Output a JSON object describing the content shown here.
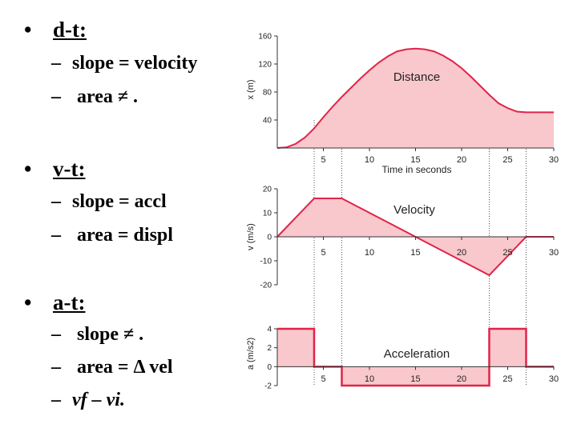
{
  "notes": {
    "bullets": [
      {
        "label": "d-t:",
        "subs": [
          "slope = velocity",
          "area ≠ ."
        ]
      },
      {
        "label": "v-t:",
        "subs": [
          "slope = accl",
          "area = displ"
        ]
      },
      {
        "label": "a-t:",
        "subs": [
          "slope ≠ .",
          "area = Δ vel",
          "vf – vi."
        ]
      }
    ],
    "bullet_char": "•",
    "dash_char": "–"
  },
  "chart_data": [
    {
      "type": "area",
      "title": "Distance",
      "xlabel": "Time in seconds",
      "ylabel": "x (m)",
      "xlim": [
        0,
        30
      ],
      "ylim": [
        0,
        160
      ],
      "x_ticks": [
        5,
        10,
        15,
        20,
        25,
        30
      ],
      "y_ticks": [
        40,
        80,
        120,
        160
      ],
      "x": [
        0,
        1,
        2,
        3,
        4,
        5,
        6,
        7,
        8,
        9,
        10,
        11,
        12,
        13,
        14,
        15,
        16,
        17,
        18,
        19,
        20,
        21,
        22,
        23,
        24,
        25,
        26,
        27,
        28,
        29,
        30
      ],
      "values": [
        0,
        1,
        6,
        15,
        28,
        44,
        59,
        73,
        86,
        99,
        111,
        122,
        131,
        138,
        141,
        142,
        141,
        138,
        132,
        124,
        114,
        102,
        89,
        76,
        64,
        57,
        52,
        51,
        51,
        51,
        51
      ],
      "fill_color": "#f9c8cc",
      "line_color": "#e0244a"
    },
    {
      "type": "area",
      "title": "Velocity",
      "xlabel": "",
      "ylabel": "v (m/s)",
      "xlim": [
        0,
        30
      ],
      "ylim": [
        -20,
        20
      ],
      "x_ticks": [
        5,
        10,
        15,
        20,
        25,
        30
      ],
      "y_ticks": [
        -20,
        -10,
        0,
        10,
        20
      ],
      "x": [
        0,
        4,
        7,
        23,
        27,
        30
      ],
      "values": [
        0,
        16,
        16,
        -16,
        0,
        0
      ],
      "fill_color": "#f9c8cc",
      "line_color": "#e0244a"
    },
    {
      "type": "area",
      "title": "Acceleration",
      "xlabel": "",
      "ylabel": "a (m/s2)",
      "xlim": [
        0,
        30
      ],
      "ylim": [
        -2,
        4
      ],
      "x_ticks": [
        5,
        10,
        15,
        20,
        25,
        30
      ],
      "y_ticks": [
        -2,
        0,
        2,
        4
      ],
      "segments": [
        {
          "x0": 0,
          "x1": 4,
          "value": 4
        },
        {
          "x0": 4,
          "x1": 7,
          "value": 0
        },
        {
          "x0": 7,
          "x1": 23,
          "value": -2
        },
        {
          "x0": 23,
          "x1": 27,
          "value": 4
        },
        {
          "x0": 27,
          "x1": 30,
          "value": 0
        }
      ],
      "fill_color": "#f9c8cc",
      "line_color": "#e0244a"
    }
  ],
  "reference_times": [
    4,
    7,
    23,
    27
  ]
}
